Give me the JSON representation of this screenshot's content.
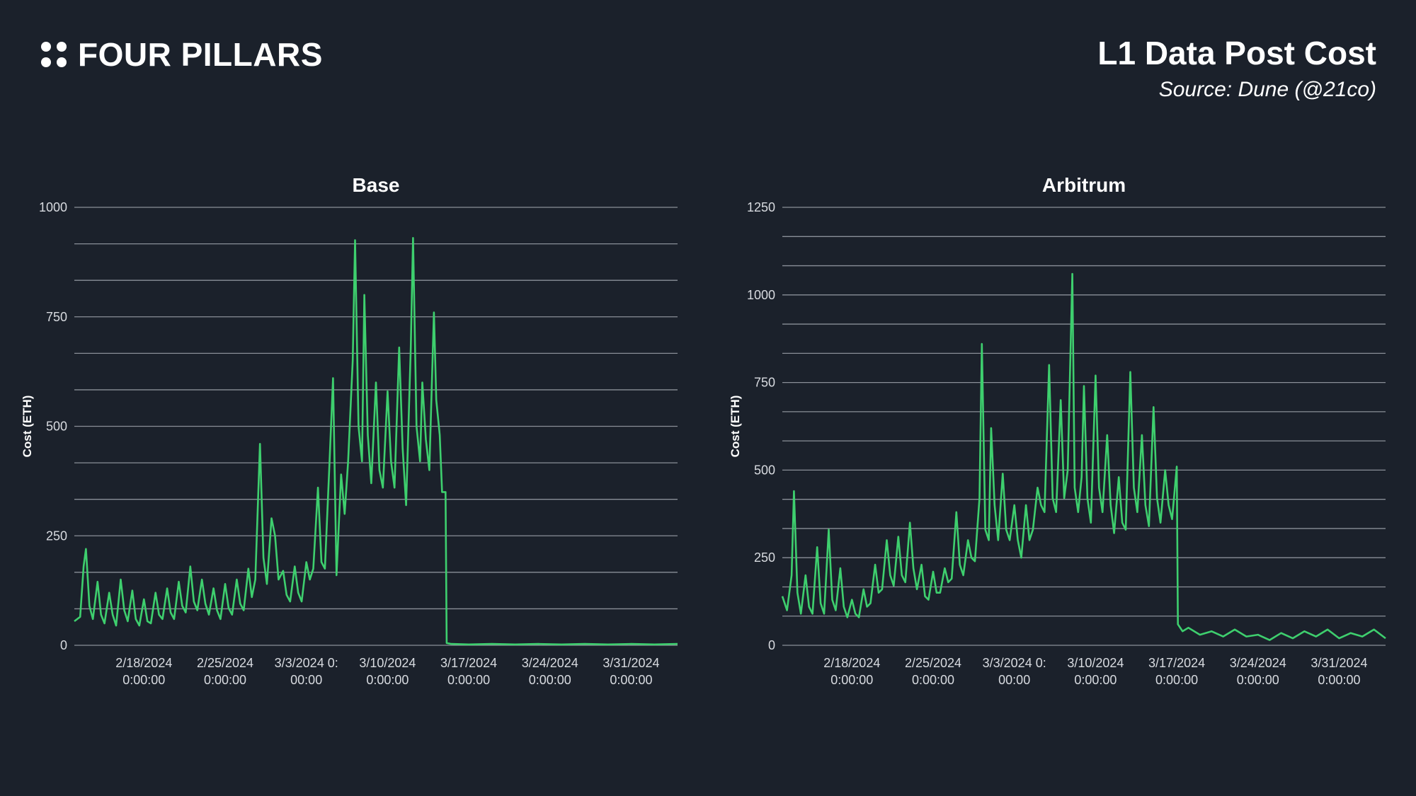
{
  "header": {
    "brand_name": "FOUR PILLARS",
    "title": "L1 Data Post Cost",
    "source": "Source: Dune (@21co)"
  },
  "colors": {
    "background": "#1b212b",
    "line": "#3ecf6e",
    "grid": "#8a8f98",
    "text": "#ffffff",
    "axis_text": "#d8dbe0"
  },
  "chart_data": [
    {
      "type": "line",
      "title": "Base",
      "ylabel": "Cost (ETH)",
      "xlabel": "",
      "ylim": [
        0,
        1000
      ],
      "yticks": [
        0,
        250,
        500,
        750,
        1000
      ],
      "grid_step": 83.33,
      "xlim_days": [
        0,
        52
      ],
      "xticks": [
        {
          "day": 6,
          "line1": "2/18/2024",
          "line2": "0:00:00"
        },
        {
          "day": 13,
          "line1": "2/25/2024",
          "line2": "0:00:00"
        },
        {
          "day": 20,
          "line1": "3/3/2024 0:",
          "line2": "00:00"
        },
        {
          "day": 27,
          "line1": "3/10/2024",
          "line2": "0:00:00"
        },
        {
          "day": 34,
          "line1": "3/17/2024",
          "line2": "0:00:00"
        },
        {
          "day": 41,
          "line1": "3/24/2024",
          "line2": "0:00:00"
        },
        {
          "day": 48,
          "line1": "3/31/2024",
          "line2": "0:00:00"
        }
      ],
      "series": [
        {
          "name": "Base",
          "points": [
            [
              0,
              55
            ],
            [
              0.5,
              65
            ],
            [
              0.8,
              180
            ],
            [
              1,
              220
            ],
            [
              1.3,
              90
            ],
            [
              1.6,
              60
            ],
            [
              2,
              145
            ],
            [
              2.3,
              70
            ],
            [
              2.6,
              50
            ],
            [
              3,
              120
            ],
            [
              3.3,
              70
            ],
            [
              3.6,
              45
            ],
            [
              4,
              150
            ],
            [
              4.3,
              80
            ],
            [
              4.6,
              55
            ],
            [
              5,
              125
            ],
            [
              5.3,
              60
            ],
            [
              5.6,
              45
            ],
            [
              6,
              105
            ],
            [
              6.3,
              55
            ],
            [
              6.6,
              50
            ],
            [
              7,
              120
            ],
            [
              7.3,
              70
            ],
            [
              7.6,
              60
            ],
            [
              8,
              130
            ],
            [
              8.3,
              75
            ],
            [
              8.6,
              60
            ],
            [
              9,
              145
            ],
            [
              9.3,
              90
            ],
            [
              9.6,
              75
            ],
            [
              10,
              180
            ],
            [
              10.3,
              100
            ],
            [
              10.6,
              80
            ],
            [
              11,
              150
            ],
            [
              11.3,
              95
            ],
            [
              11.6,
              70
            ],
            [
              12,
              130
            ],
            [
              12.3,
              80
            ],
            [
              12.6,
              60
            ],
            [
              13,
              140
            ],
            [
              13.3,
              85
            ],
            [
              13.6,
              70
            ],
            [
              14,
              150
            ],
            [
              14.3,
              95
            ],
            [
              14.6,
              80
            ],
            [
              15,
              175
            ],
            [
              15.3,
              110
            ],
            [
              15.6,
              150
            ],
            [
              16,
              460
            ],
            [
              16.3,
              200
            ],
            [
              16.6,
              140
            ],
            [
              17,
              290
            ],
            [
              17.3,
              250
            ],
            [
              17.6,
              150
            ],
            [
              18,
              170
            ],
            [
              18.3,
              115
            ],
            [
              18.6,
              100
            ],
            [
              19,
              180
            ],
            [
              19.3,
              120
            ],
            [
              19.6,
              100
            ],
            [
              20,
              190
            ],
            [
              20.3,
              150
            ],
            [
              20.6,
              175
            ],
            [
              21,
              360
            ],
            [
              21.3,
              190
            ],
            [
              21.6,
              175
            ],
            [
              22,
              420
            ],
            [
              22.3,
              610
            ],
            [
              22.6,
              160
            ],
            [
              23,
              390
            ],
            [
              23.3,
              300
            ],
            [
              23.6,
              420
            ],
            [
              24,
              650
            ],
            [
              24.2,
              925
            ],
            [
              24.5,
              500
            ],
            [
              24.8,
              420
            ],
            [
              25,
              800
            ],
            [
              25.3,
              480
            ],
            [
              25.6,
              370
            ],
            [
              26,
              600
            ],
            [
              26.3,
              400
            ],
            [
              26.6,
              360
            ],
            [
              27,
              580
            ],
            [
              27.3,
              420
            ],
            [
              27.6,
              360
            ],
            [
              28,
              680
            ],
            [
              28.3,
              450
            ],
            [
              28.6,
              320
            ],
            [
              29,
              680
            ],
            [
              29.2,
              930
            ],
            [
              29.5,
              500
            ],
            [
              29.8,
              420
            ],
            [
              30,
              600
            ],
            [
              30.3,
              470
            ],
            [
              30.6,
              400
            ],
            [
              31,
              760
            ],
            [
              31.2,
              560
            ],
            [
              31.5,
              480
            ],
            [
              31.7,
              350
            ],
            [
              32,
              350
            ],
            [
              32.1,
              5
            ],
            [
              32.5,
              3
            ],
            [
              34,
              2
            ],
            [
              36,
              3
            ],
            [
              38,
              2
            ],
            [
              40,
              3
            ],
            [
              42,
              2
            ],
            [
              44,
              3
            ],
            [
              46,
              2
            ],
            [
              48,
              3
            ],
            [
              50,
              2
            ],
            [
              52,
              3
            ]
          ]
        }
      ]
    },
    {
      "type": "line",
      "title": "Arbitrum",
      "ylabel": "Cost (ETH)",
      "xlabel": "",
      "ylim": [
        0,
        1250
      ],
      "yticks": [
        0,
        250,
        500,
        750,
        1000,
        1250
      ],
      "grid_step": 83.33,
      "xlim_days": [
        0,
        52
      ],
      "xticks": [
        {
          "day": 6,
          "line1": "2/18/2024",
          "line2": "0:00:00"
        },
        {
          "day": 13,
          "line1": "2/25/2024",
          "line2": "0:00:00"
        },
        {
          "day": 20,
          "line1": "3/3/2024 0:",
          "line2": "00:00"
        },
        {
          "day": 27,
          "line1": "3/10/2024",
          "line2": "0:00:00"
        },
        {
          "day": 34,
          "line1": "3/17/2024",
          "line2": "0:00:00"
        },
        {
          "day": 41,
          "line1": "3/24/2024",
          "line2": "0:00:00"
        },
        {
          "day": 48,
          "line1": "3/31/2024",
          "line2": "0:00:00"
        }
      ],
      "series": [
        {
          "name": "Arbitrum",
          "points": [
            [
              0,
              140
            ],
            [
              0.4,
              100
            ],
            [
              0.8,
              200
            ],
            [
              1,
              440
            ],
            [
              1.3,
              150
            ],
            [
              1.6,
              90
            ],
            [
              2,
              200
            ],
            [
              2.3,
              110
            ],
            [
              2.6,
              90
            ],
            [
              3,
              280
            ],
            [
              3.3,
              120
            ],
            [
              3.6,
              90
            ],
            [
              4,
              330
            ],
            [
              4.3,
              130
            ],
            [
              4.6,
              100
            ],
            [
              5,
              220
            ],
            [
              5.3,
              110
            ],
            [
              5.6,
              80
            ],
            [
              6,
              130
            ],
            [
              6.3,
              90
            ],
            [
              6.6,
              80
            ],
            [
              7,
              160
            ],
            [
              7.3,
              110
            ],
            [
              7.6,
              120
            ],
            [
              8,
              230
            ],
            [
              8.3,
              150
            ],
            [
              8.6,
              160
            ],
            [
              9,
              300
            ],
            [
              9.3,
              200
            ],
            [
              9.6,
              170
            ],
            [
              10,
              310
            ],
            [
              10.3,
              200
            ],
            [
              10.6,
              180
            ],
            [
              11,
              350
            ],
            [
              11.3,
              220
            ],
            [
              11.6,
              160
            ],
            [
              12,
              230
            ],
            [
              12.3,
              140
            ],
            [
              12.6,
              130
            ],
            [
              13,
              210
            ],
            [
              13.3,
              150
            ],
            [
              13.6,
              150
            ],
            [
              14,
              220
            ],
            [
              14.3,
              180
            ],
            [
              14.6,
              190
            ],
            [
              15,
              380
            ],
            [
              15.3,
              230
            ],
            [
              15.6,
              200
            ],
            [
              16,
              300
            ],
            [
              16.3,
              250
            ],
            [
              16.6,
              240
            ],
            [
              17,
              420
            ],
            [
              17.2,
              860
            ],
            [
              17.5,
              330
            ],
            [
              17.8,
              300
            ],
            [
              18,
              620
            ],
            [
              18.3,
              400
            ],
            [
              18.6,
              300
            ],
            [
              19,
              490
            ],
            [
              19.3,
              330
            ],
            [
              19.6,
              300
            ],
            [
              20,
              400
            ],
            [
              20.3,
              300
            ],
            [
              20.6,
              250
            ],
            [
              21,
              400
            ],
            [
              21.3,
              300
            ],
            [
              21.6,
              330
            ],
            [
              22,
              450
            ],
            [
              22.3,
              400
            ],
            [
              22.6,
              380
            ],
            [
              23,
              800
            ],
            [
              23.3,
              420
            ],
            [
              23.6,
              380
            ],
            [
              24,
              700
            ],
            [
              24.3,
              420
            ],
            [
              24.6,
              500
            ],
            [
              25,
              1060
            ],
            [
              25.2,
              450
            ],
            [
              25.5,
              380
            ],
            [
              25.8,
              480
            ],
            [
              26,
              740
            ],
            [
              26.3,
              420
            ],
            [
              26.6,
              350
            ],
            [
              27,
              770
            ],
            [
              27.3,
              450
            ],
            [
              27.6,
              380
            ],
            [
              28,
              600
            ],
            [
              28.3,
              400
            ],
            [
              28.6,
              320
            ],
            [
              29,
              480
            ],
            [
              29.3,
              350
            ],
            [
              29.6,
              330
            ],
            [
              30,
              780
            ],
            [
              30.3,
              450
            ],
            [
              30.6,
              380
            ],
            [
              31,
              600
            ],
            [
              31.3,
              400
            ],
            [
              31.6,
              340
            ],
            [
              32,
              680
            ],
            [
              32.3,
              420
            ],
            [
              32.6,
              350
            ],
            [
              33,
              500
            ],
            [
              33.3,
              400
            ],
            [
              33.6,
              360
            ],
            [
              34,
              510
            ],
            [
              34.1,
              60
            ],
            [
              34.5,
              40
            ],
            [
              35,
              50
            ],
            [
              36,
              30
            ],
            [
              37,
              40
            ],
            [
              38,
              25
            ],
            [
              39,
              45
            ],
            [
              40,
              25
            ],
            [
              41,
              30
            ],
            [
              42,
              15
            ],
            [
              43,
              35
            ],
            [
              44,
              20
            ],
            [
              45,
              40
            ],
            [
              46,
              25
            ],
            [
              47,
              45
            ],
            [
              48,
              20
            ],
            [
              49,
              35
            ],
            [
              50,
              25
            ],
            [
              51,
              45
            ],
            [
              52,
              20
            ]
          ]
        }
      ]
    }
  ]
}
